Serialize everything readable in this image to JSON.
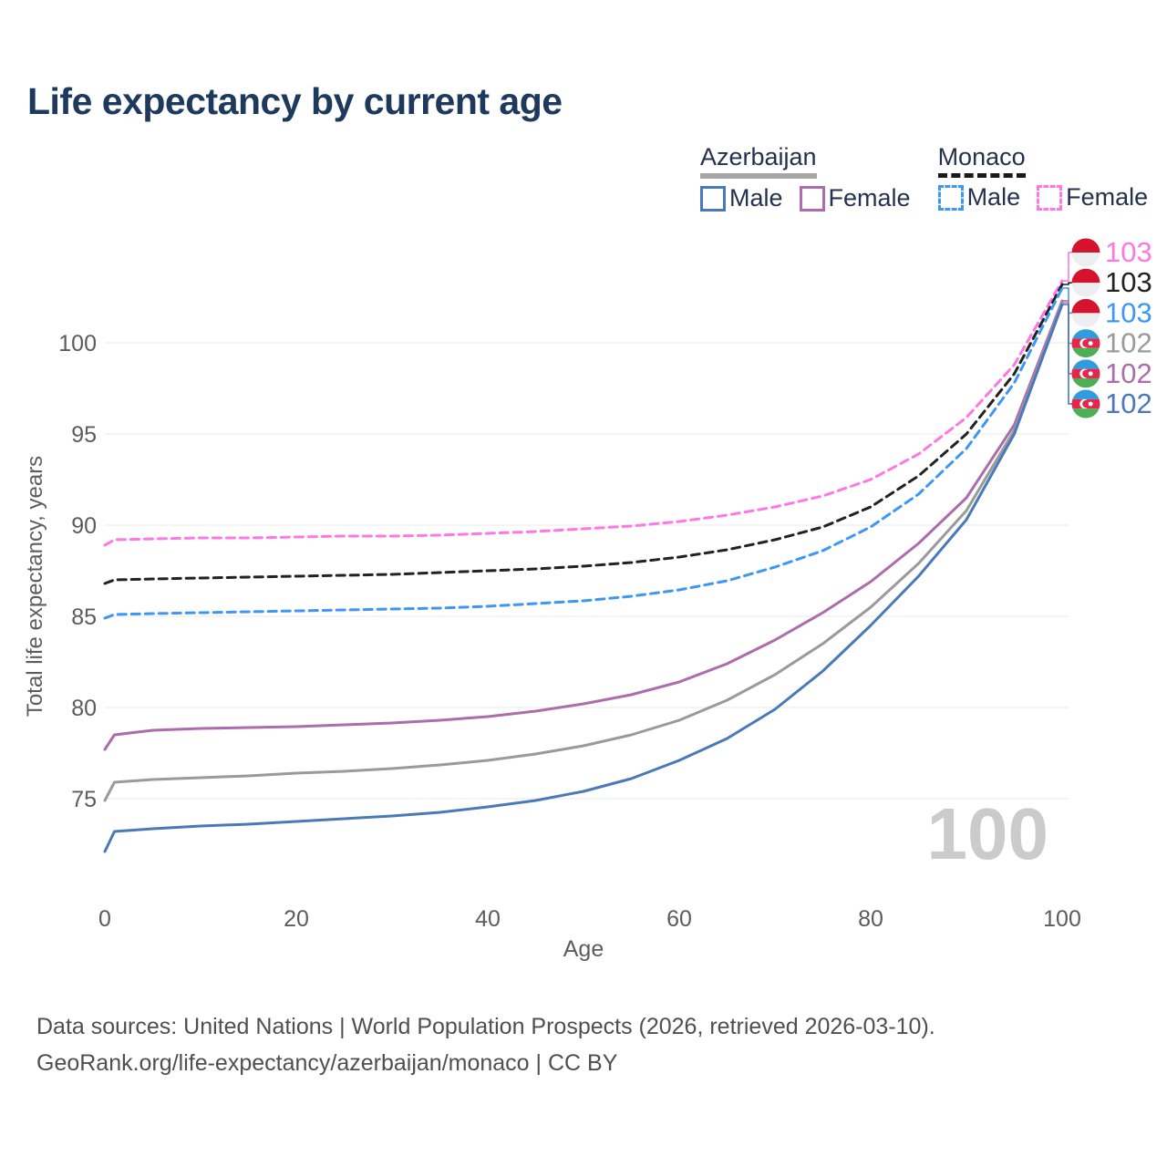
{
  "title": "Life expectancy by current age",
  "legend": {
    "groups": [
      {
        "label": "Azerbaijan",
        "underline_style": "solid",
        "underline_color": "#a6a6a6",
        "items": [
          {
            "label": "Male",
            "color": "#4a79ba",
            "dashed": false
          },
          {
            "label": "Female",
            "color": "#ad6cab",
            "dashed": false
          }
        ]
      },
      {
        "label": "Monaco",
        "underline_style": "dashed",
        "underline_color": "#1a1a1a",
        "items": [
          {
            "label": "Male",
            "color": "#3d97f5",
            "dashed": true
          },
          {
            "label": "Female",
            "color": "#ff77e4",
            "dashed": true
          }
        ]
      }
    ]
  },
  "chart_data": {
    "type": "line",
    "title": "Life expectancy by current age",
    "xlabel": "Age",
    "ylabel": "Total life expectancy, years",
    "xlim": [
      0,
      100
    ],
    "ylim": [
      72,
      104
    ],
    "grid": "horizontal",
    "legend_position": "top-right",
    "xticks": [
      0,
      20,
      40,
      60,
      80,
      100
    ],
    "yticks": [
      75,
      80,
      85,
      90,
      95,
      100
    ],
    "watermark": "100",
    "ages": [
      0,
      1,
      5,
      10,
      15,
      20,
      25,
      30,
      35,
      40,
      45,
      50,
      55,
      60,
      65,
      70,
      75,
      80,
      85,
      90,
      95,
      100
    ],
    "series": [
      {
        "name": "Monaco Female",
        "country": "Monaco",
        "sex": "Female",
        "dashed": true,
        "color": "#ff77e4",
        "values": [
          88.9,
          89.2,
          89.25,
          89.3,
          89.3,
          89.35,
          89.4,
          89.4,
          89.45,
          89.55,
          89.65,
          89.8,
          89.95,
          90.2,
          90.55,
          91.0,
          91.6,
          92.5,
          93.9,
          95.9,
          98.8,
          103.4
        ]
      },
      {
        "name": "Monaco",
        "country": "Monaco",
        "sex": "Total",
        "dashed": true,
        "color": "#222222",
        "values": [
          86.8,
          87.0,
          87.05,
          87.1,
          87.15,
          87.2,
          87.25,
          87.3,
          87.4,
          87.5,
          87.6,
          87.75,
          87.95,
          88.25,
          88.65,
          89.2,
          89.9,
          91.0,
          92.7,
          95.0,
          98.3,
          103.2
        ]
      },
      {
        "name": "Monaco Male",
        "country": "Monaco",
        "sex": "Male",
        "dashed": true,
        "color": "#3d97f5",
        "values": [
          84.9,
          85.1,
          85.15,
          85.2,
          85.25,
          85.3,
          85.35,
          85.4,
          85.45,
          85.55,
          85.7,
          85.85,
          86.1,
          86.45,
          86.95,
          87.7,
          88.6,
          89.9,
          91.7,
          94.2,
          97.8,
          103.0
        ]
      },
      {
        "name": "Azerbaijan Female",
        "country": "Azerbaijan",
        "sex": "Female",
        "dashed": false,
        "color": "#ad6cab",
        "values": [
          77.7,
          78.5,
          78.75,
          78.85,
          78.9,
          78.95,
          79.05,
          79.15,
          79.3,
          79.5,
          79.8,
          80.2,
          80.7,
          81.4,
          82.4,
          83.7,
          85.2,
          86.9,
          89.0,
          91.5,
          95.5,
          102.3
        ]
      },
      {
        "name": "Azerbaijan",
        "country": "Azerbaijan",
        "sex": "Total",
        "dashed": false,
        "color": "#9a9a9a",
        "values": [
          74.9,
          75.9,
          76.05,
          76.15,
          76.25,
          76.4,
          76.5,
          76.65,
          76.85,
          77.1,
          77.45,
          77.9,
          78.5,
          79.3,
          80.4,
          81.8,
          83.5,
          85.5,
          87.9,
          90.8,
          95.2,
          102.2
        ]
      },
      {
        "name": "Azerbaijan Male",
        "country": "Azerbaijan",
        "sex": "Male",
        "dashed": false,
        "color": "#4a79ba",
        "values": [
          72.1,
          73.2,
          73.35,
          73.5,
          73.6,
          73.75,
          73.9,
          74.05,
          74.25,
          74.55,
          74.9,
          75.4,
          76.1,
          77.1,
          78.3,
          79.9,
          82.0,
          84.5,
          87.2,
          90.3,
          95.0,
          102.1
        ]
      }
    ],
    "right_labels": [
      {
        "value": "103",
        "flag": "monaco",
        "series": "Monaco Female",
        "color": "#ff77e4"
      },
      {
        "value": "103",
        "flag": "monaco",
        "series": "Monaco",
        "color": "#222222"
      },
      {
        "value": "103",
        "flag": "monaco",
        "series": "Monaco Male",
        "color": "#3d97f5"
      },
      {
        "value": "102",
        "flag": "azerbaijan",
        "series": "Azerbaijan",
        "color": "#9a9a9a"
      },
      {
        "value": "102",
        "flag": "azerbaijan",
        "series": "Azerbaijan Female",
        "color": "#ad6cab"
      },
      {
        "value": "102",
        "flag": "azerbaijan",
        "series": "Azerbaijan Male",
        "color": "#4a79ba"
      }
    ]
  },
  "footer": {
    "line1": "Data sources: United Nations | World Population Prospects (2026, retrieved 2026-03-10).",
    "line2": "GeoRank.org/life-expectancy/azerbaijan/monaco | CC BY"
  }
}
